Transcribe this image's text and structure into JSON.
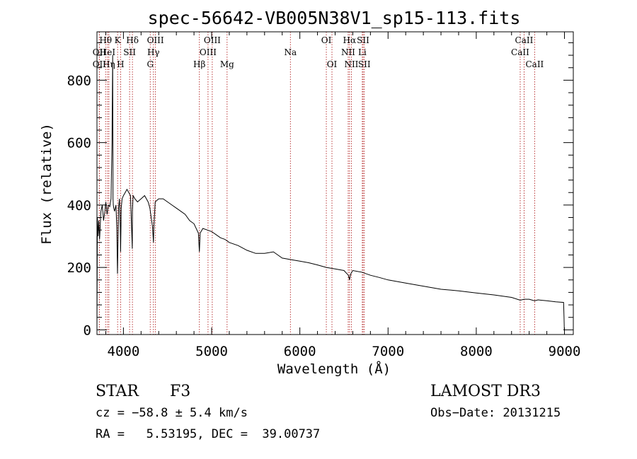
{
  "chart_data": {
    "type": "line",
    "title": "spec-56642-VB005N38V1_sp15-113.fits",
    "xlabel": "Wavelength (Å)",
    "ylabel": "Flux (relative)",
    "xlim": [
      3700,
      9100
    ],
    "ylim": [
      -15,
      955
    ],
    "xticks": [
      4000,
      5000,
      6000,
      7000,
      8000,
      9000
    ],
    "yticks": [
      0,
      200,
      400,
      600,
      800
    ],
    "x_minor_step": 200,
    "y_minor_step": 40,
    "series": [
      {
        "name": "spectrum",
        "x": [
          3700,
          3705,
          3712,
          3720,
          3730,
          3745,
          3760,
          3775,
          3790,
          3800,
          3815,
          3830,
          3845,
          3860,
          3870,
          3878,
          3882,
          3885,
          3890,
          3900,
          3915,
          3925,
          3933,
          3945,
          3955,
          3965,
          3968,
          3975,
          3985,
          4000,
          4020,
          4040,
          4060,
          4080,
          4100,
          4102,
          4110,
          4130,
          4160,
          4200,
          4240,
          4280,
          4300,
          4330,
          4340,
          4345,
          4360,
          4400,
          4450,
          4500,
          4550,
          4600,
          4650,
          4700,
          4750,
          4800,
          4850,
          4861,
          4870,
          4900,
          4950,
          5000,
          5050,
          5100,
          5150,
          5200,
          5300,
          5400,
          5500,
          5600,
          5700,
          5750,
          5800,
          5900,
          6000,
          6100,
          6200,
          6300,
          6400,
          6500,
          6550,
          6563,
          6575,
          6600,
          6700,
          6800,
          6900,
          7000,
          7200,
          7400,
          7600,
          7800,
          8000,
          8200,
          8400,
          8498,
          8542,
          8600,
          8662,
          8700,
          8800,
          8900,
          8990,
          8995,
          8998
        ],
        "values": [
          0,
          360,
          300,
          350,
          290,
          380,
          400,
          350,
          380,
          410,
          370,
          400,
          395,
          420,
          600,
          880,
          420,
          400,
          390,
          380,
          400,
          330,
          180,
          390,
          420,
          330,
          250,
          390,
          420,
          430,
          440,
          450,
          440,
          430,
          260,
          380,
          430,
          420,
          410,
          420,
          430,
          410,
          390,
          330,
          280,
          330,
          410,
          420,
          420,
          410,
          400,
          390,
          380,
          370,
          350,
          340,
          310,
          250,
          310,
          325,
          320,
          315,
          305,
          295,
          290,
          280,
          270,
          255,
          245,
          245,
          250,
          240,
          230,
          225,
          220,
          215,
          208,
          200,
          195,
          190,
          175,
          160,
          178,
          190,
          185,
          175,
          168,
          160,
          150,
          140,
          130,
          125,
          118,
          112,
          104,
          95,
          98,
          98,
          93,
          96,
          93,
          90,
          88,
          40,
          0
        ]
      }
    ],
    "line_markers": [
      {
        "label": "Hθ",
        "x": 3798,
        "row": 0
      },
      {
        "label": "OII",
        "x": 3727,
        "row": 1
      },
      {
        "label": "OII",
        "x": 3727,
        "row": 2
      },
      {
        "label": "HeI",
        "x": 3820,
        "row": 1
      },
      {
        "label": "Hη",
        "x": 3835,
        "row": 2
      },
      {
        "label": "K",
        "x": 3934,
        "row": 0
      },
      {
        "label": "SII",
        "x": 4070,
        "row": 1
      },
      {
        "label": "H",
        "x": 3968,
        "row": 2
      },
      {
        "label": "Hδ",
        "x": 4102,
        "row": 0
      },
      {
        "label": "OIII",
        "x": 4363,
        "row": 0
      },
      {
        "label": "Hγ",
        "x": 4340,
        "row": 1
      },
      {
        "label": "G",
        "x": 4304,
        "row": 2
      },
      {
        "label": "Hβ",
        "x": 4861,
        "row": 2
      },
      {
        "label": "OIII",
        "x": 5007,
        "row": 0
      },
      {
        "label": "OIII",
        "x": 4959,
        "row": 1
      },
      {
        "label": "Mg",
        "x": 5175,
        "row": 2
      },
      {
        "label": "Na",
        "x": 5893,
        "row": 1
      },
      {
        "label": "OI",
        "x": 6300,
        "row": 0
      },
      {
        "label": "OI",
        "x": 6364,
        "row": 2
      },
      {
        "label": "Hα",
        "x": 6563,
        "row": 0
      },
      {
        "label": "NII",
        "x": 6548,
        "row": 1
      },
      {
        "label": "NII",
        "x": 6584,
        "row": 2
      },
      {
        "label": "SII",
        "x": 6717,
        "row": 0
      },
      {
        "label": "Li",
        "x": 6708,
        "row": 1
      },
      {
        "label": "SII",
        "x": 6731,
        "row": 2
      },
      {
        "label": "CaII",
        "x": 8542,
        "row": 0
      },
      {
        "label": "CaII",
        "x": 8498,
        "row": 1
      },
      {
        "label": "CaII",
        "x": 8662,
        "row": 2
      }
    ]
  },
  "info": {
    "object_type": "STAR",
    "subclass": "F3",
    "survey": "LAMOST DR3",
    "cz": "cz = −58.8 ± 5.4 km/s",
    "obs_date": "Obs−Date: 20131215",
    "coords": "RA =   5.53195, DEC =  39.00737"
  },
  "colors": {
    "axis": "#000000",
    "spectrum": "#000000",
    "marker_line": "#b22222"
  }
}
